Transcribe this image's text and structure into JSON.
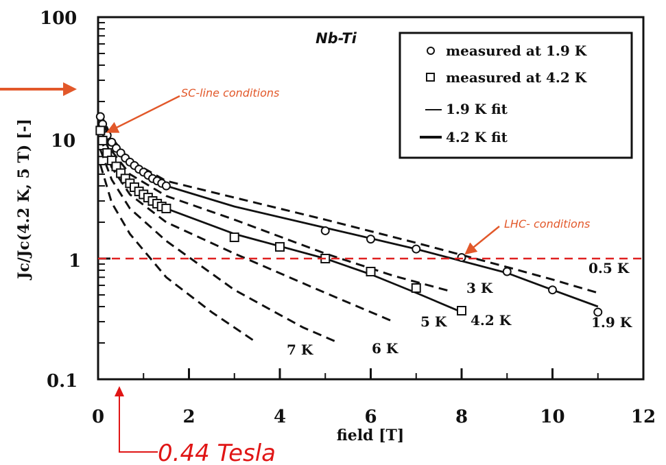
{
  "chart_data": {
    "type": "line",
    "title": "Nb-Ti",
    "xlabel": "field [T]",
    "ylabel": "Jc/Jc(4.2 K, 5 T) [-]",
    "xlim": [
      0,
      12
    ],
    "ylim": [
      0.1,
      100
    ],
    "yscale": "log",
    "x_ticks": [
      "0",
      "2",
      "4",
      "6",
      "8",
      "10",
      "12"
    ],
    "y_ticks": [
      "0.1",
      "1",
      "10",
      "100"
    ],
    "legend": {
      "position": "top-right",
      "entries": [
        "measured at 1.9 K",
        "measured at 4.2 K",
        "1.9 K fit",
        "4.2 K fit"
      ]
    },
    "series": [
      {
        "name": "0.5 K",
        "style": "dashed",
        "x": [
          0.05,
          0.3,
          0.7,
          1.5,
          3,
          5,
          7,
          9,
          10,
          11
        ],
        "y": [
          16,
          10,
          6.5,
          4.4,
          3.2,
          2.1,
          1.35,
          0.85,
          0.67,
          0.52
        ]
      },
      {
        "name": "1.9 K fit",
        "style": "solid",
        "x": [
          0.05,
          0.3,
          0.7,
          1.5,
          3,
          5,
          7,
          9,
          10,
          11
        ],
        "y": [
          15,
          9,
          5.9,
          4,
          2.7,
          1.8,
          1.2,
          0.76,
          0.55,
          0.4
        ]
      },
      {
        "name": "3 K",
        "style": "dashed",
        "x": [
          0.05,
          0.3,
          0.7,
          1.5,
          3,
          5,
          6.5,
          7.8
        ],
        "y": [
          13,
          7.8,
          5,
          3.3,
          2.1,
          1.1,
          0.72,
          0.53
        ]
      },
      {
        "name": "4.2 K fit",
        "style": "solid",
        "x": [
          0.05,
          0.3,
          0.7,
          1.5,
          3,
          5,
          6,
          7,
          8
        ],
        "y": [
          12,
          7,
          4.2,
          2.6,
          1.6,
          1.0,
          0.74,
          0.52,
          0.36
        ]
      },
      {
        "name": "5 K",
        "style": "dashed",
        "x": [
          0.05,
          0.3,
          0.7,
          1.5,
          3,
          5,
          6.5
        ],
        "y": [
          10,
          5.7,
          3.4,
          2.0,
          1.1,
          0.52,
          0.3
        ]
      },
      {
        "name": "6 K",
        "style": "dashed",
        "x": [
          0.05,
          0.3,
          0.7,
          1.5,
          3,
          4.5,
          5.3
        ],
        "y": [
          8,
          4.5,
          2.6,
          1.4,
          0.55,
          0.27,
          0.2
        ]
      },
      {
        "name": "7 K",
        "style": "dashed",
        "x": [
          0.05,
          0.3,
          0.7,
          1.5,
          2.5,
          3.5
        ],
        "y": [
          6,
          2.9,
          1.6,
          0.7,
          0.36,
          0.2
        ]
      }
    ],
    "measured_1_9K": {
      "x": [
        0.05,
        0.1,
        0.2,
        0.3,
        0.4,
        0.5,
        0.6,
        0.7,
        0.8,
        0.9,
        1.0,
        1.1,
        1.2,
        1.3,
        1.4,
        1.5,
        5,
        6,
        7,
        8,
        9,
        10,
        11
      ],
      "y": [
        15,
        13,
        10.5,
        9.2,
        8.2,
        7.5,
        6.8,
        6.3,
        5.9,
        5.5,
        5.2,
        4.9,
        4.6,
        4.4,
        4.2,
        4.0,
        1.7,
        1.45,
        1.2,
        1.02,
        0.78,
        0.55,
        0.36
      ]
    },
    "measured_4_2K": {
      "x": [
        0.05,
        0.1,
        0.2,
        0.3,
        0.4,
        0.5,
        0.6,
        0.7,
        0.8,
        0.9,
        1.0,
        1.1,
        1.2,
        1.3,
        1.4,
        1.5,
        3,
        4,
        5,
        6,
        7,
        8
      ],
      "y": [
        11.5,
        9.5,
        7.5,
        6.5,
        5.8,
        5.1,
        4.6,
        4.2,
        3.9,
        3.6,
        3.4,
        3.2,
        3.0,
        2.85,
        2.7,
        2.6,
        1.5,
        1.25,
        1.0,
        0.78,
        0.57,
        0.37
      ]
    },
    "reference_line": {
      "y": 1,
      "color": "#e02020",
      "style": "dashed"
    },
    "annotations": {
      "sc_line": {
        "text": "SC-line conditions",
        "x": 0.05,
        "y": 13
      },
      "lhc": {
        "text": "LHC- conditions",
        "x": 8,
        "y": 1.05
      },
      "tesla": {
        "text": "0.44 Tesla",
        "x": 0.44
      }
    },
    "colors": {
      "ink": "#111111",
      "annotation": "#e2582a",
      "reference": "#e02020"
    }
  }
}
